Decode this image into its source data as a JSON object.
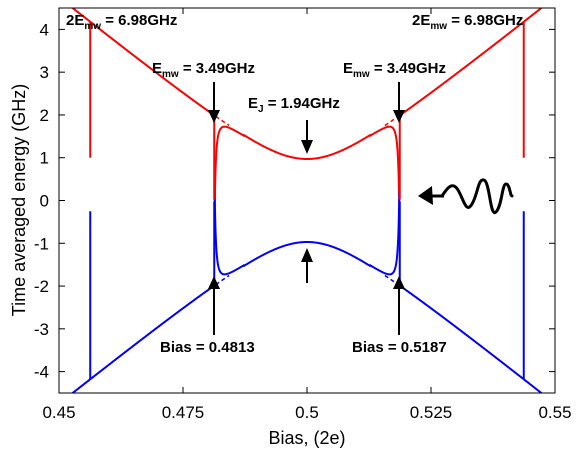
{
  "chart_data": {
    "type": "line",
    "xlabel": "Bias, (2e)",
    "ylabel": "Time averaged energy (GHz)",
    "xlim": [
      0.45,
      0.55
    ],
    "ylim": [
      -4.5,
      4.5
    ],
    "x_ticks": [
      0.45,
      0.475,
      0.5,
      0.525,
      0.55
    ],
    "x_tick_labels": [
      "0.45",
      "0.475",
      "0.5",
      "0.525",
      "0.55"
    ],
    "y_ticks": [
      4,
      3,
      2,
      1,
      0,
      -1,
      -2,
      -3,
      -4
    ],
    "y_tick_labels": [
      "4",
      "3",
      "2",
      "1",
      "0",
      "-1",
      "-2",
      "-3",
      "-4"
    ],
    "grid": false,
    "colors": {
      "upper": "#ff0000",
      "lower": "#0000ff",
      "axes": "#000000",
      "wave": "#000000"
    },
    "model": {
      "EJ_GHz": 1.94,
      "charge_slope_GHz_per_unit_bias": 186,
      "resonance_bias": [
        0.4813,
        0.5187
      ],
      "two_photon_bias": [
        0.4563,
        0.5437
      ]
    },
    "series": [
      {
        "key": "upper",
        "x": [
          0.45,
          0.4563,
          0.47,
          0.4813,
          0.49,
          0.5,
          0.51,
          0.5187,
          0.53,
          0.5437,
          0.55
        ],
        "y": [
          4.14,
          3.49,
          2.13,
          1.7,
          1.27,
          0.97,
          1.27,
          1.7,
          2.13,
          3.49,
          4.14
        ]
      },
      {
        "key": "lower",
        "x": [
          0.45,
          0.4563,
          0.47,
          0.4813,
          0.49,
          0.5,
          0.51,
          0.5187,
          0.53,
          0.5437,
          0.55
        ],
        "y": [
          -4.14,
          -3.49,
          -2.13,
          -1.7,
          -1.27,
          -0.97,
          -1.27,
          -1.7,
          -2.13,
          -3.49,
          -4.14
        ]
      }
    ],
    "annotations": {
      "two_mw_left": {
        "prefix": "2E",
        "sub": "mw",
        "suffix": " = 6.98GHz"
      },
      "two_mw_right": {
        "prefix": "2E",
        "sub": "mw",
        "suffix": " = 6.98GHz"
      },
      "mw_left": {
        "prefix": "E",
        "sub": "mw",
        "suffix": " = 3.49GHz"
      },
      "mw_right": {
        "prefix": "E",
        "sub": "mw",
        "suffix": " = 3.49GHz"
      },
      "ej": {
        "prefix": "E",
        "sub": "J",
        "suffix": " = 1.94GHz"
      },
      "bias_left": "Bias = 0.4813",
      "bias_right": "Bias = 0.5187"
    }
  }
}
